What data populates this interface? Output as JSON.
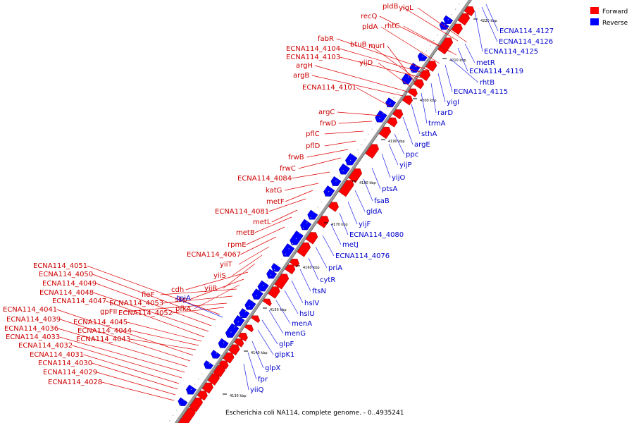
{
  "title": "Escherichia coli NA114, complete genome. - 0..4935241",
  "legend": [
    {
      "label": "Forward",
      "color": "#ff0000"
    },
    {
      "label": "Reverse",
      "color": "#0000ff"
    }
  ],
  "colors": {
    "forward_label": "#cc0000",
    "reverse_label": "#0000cc",
    "forward_fill": "#ff0000",
    "reverse_fill": "#0000ff",
    "backbone": "#888888"
  },
  "ticks": [
    "4130 kbp",
    "4140 kbp",
    "4150 kbp",
    "4160 kbp",
    "4170 kbp",
    "4180 kbp",
    "4190 kbp",
    "4200 kbp",
    "4210 kbp",
    "4220 kbp"
  ],
  "forward_genes": [
    "pldB",
    "yigL",
    "recQ",
    "rhtC",
    "pldA",
    "fabR",
    "ECNA114_4104",
    "ECNA114_4103",
    "btuB",
    "murI",
    "yijD",
    "argH",
    "argB",
    "ECNA114_4101",
    "argC",
    "frwD",
    "pflC",
    "pflD",
    "frwB",
    "frwC",
    "ECNA114_4084",
    "katG",
    "metF",
    "ECNA114_4081",
    "metL",
    "metB",
    "rpmE",
    "ECNA114_4067",
    "yiiT",
    "yiiS",
    "yiiR",
    "cdh",
    "sbp",
    "pfkA",
    "fieF",
    "ECNA114_4053",
    "gpFII",
    "ECNA114_4052",
    "ECNA114_4051",
    "ECNA114_4050",
    "ECNA114_4049",
    "ECNA114_4048",
    "ECNA114_4047",
    "ECNA114_4045",
    "ECNA114_4044",
    "ECNA114_4043",
    "ECNA114_4041",
    "ECNA114_4039",
    "ECNA114_4036",
    "ECNA114_4033",
    "ECNA114_4032",
    "ECNA114_4031",
    "ECNA114_4030",
    "ECNA114_4029",
    "ECNA114_4028"
  ],
  "reverse_genes": [
    "ECNA114_4127",
    "ECNA114_4126",
    "ECNA114_4125",
    "metR",
    "ECNA114_4119",
    "rhtB",
    "ECNA114_4115",
    "yigI",
    "rarD",
    "trmA",
    "sthA",
    "argE",
    "ppc",
    "yijP",
    "yijO",
    "ptsA",
    "fsaB",
    "gldA",
    "yijF",
    "ECNA114_4080",
    "metJ",
    "ECNA114_4076",
    "priA",
    "cytR",
    "ftsN",
    "hslV",
    "hslU",
    "menA",
    "menG",
    "glpF",
    "glpK1",
    "glpX",
    "fpr",
    "yiiQ",
    "tpiA"
  ]
}
